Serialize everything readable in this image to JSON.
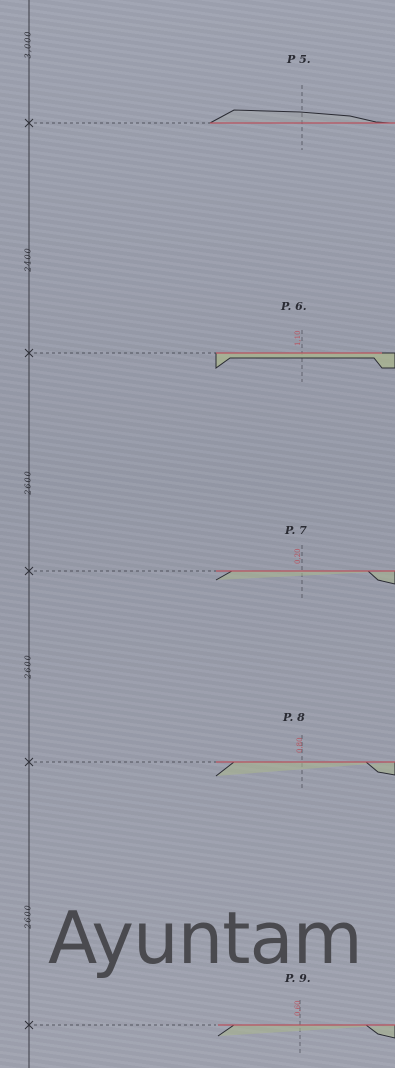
{
  "axis_labels": [
    "3,000",
    "2400",
    "2600",
    "2600",
    "2600"
  ],
  "profiles": [
    {
      "label": "P 5."
    },
    {
      "label": "P. 6."
    },
    {
      "label": "P. 7"
    },
    {
      "label": "P. 8"
    },
    {
      "label": "P. 9."
    }
  ],
  "watermark": "Ayuntam",
  "colors": {
    "paper": "#9b9fad",
    "ink": "#2a2b33",
    "red_line": "#b8525e",
    "green_wash": "#a9b48f"
  }
}
